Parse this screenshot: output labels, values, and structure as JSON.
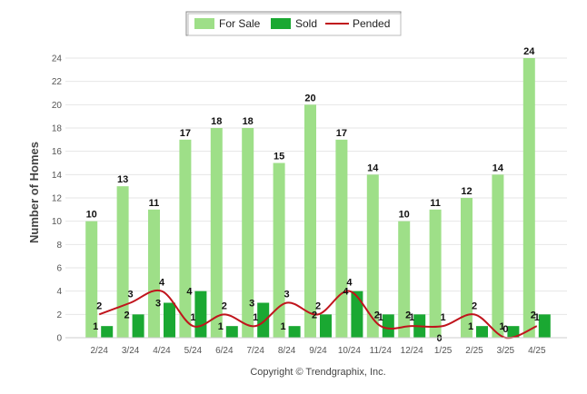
{
  "chart_data": {
    "type": "bar",
    "title": "",
    "xlabel": "",
    "ylabel": "Number of Homes",
    "ylim": [
      0,
      24
    ],
    "yticks": [
      0,
      2,
      4,
      6,
      8,
      10,
      12,
      14,
      16,
      18,
      20,
      22,
      24
    ],
    "grid": true,
    "legend_position": "top-center",
    "categories": [
      "2/24",
      "3/24",
      "4/24",
      "5/24",
      "6/24",
      "7/24",
      "8/24",
      "9/24",
      "10/24",
      "11/24",
      "12/24",
      "1/25",
      "2/25",
      "3/25",
      "4/25"
    ],
    "series": [
      {
        "name": "For Sale",
        "kind": "bar",
        "color": "#9edf88",
        "values": [
          10,
          13,
          11,
          17,
          18,
          18,
          15,
          20,
          17,
          14,
          10,
          11,
          12,
          14,
          24
        ]
      },
      {
        "name": "Sold",
        "kind": "bar",
        "color": "#1aa832",
        "values": [
          1,
          2,
          3,
          4,
          1,
          3,
          1,
          2,
          4,
          2,
          2,
          0,
          1,
          1,
          2
        ]
      },
      {
        "name": "Pended",
        "kind": "line",
        "color": "#c0141c",
        "values": [
          2,
          3,
          4,
          1,
          2,
          1,
          3,
          2,
          4,
          1,
          1,
          1,
          2,
          0,
          1
        ]
      }
    ],
    "footer": "Copyright © Trendgraphix, Inc."
  }
}
